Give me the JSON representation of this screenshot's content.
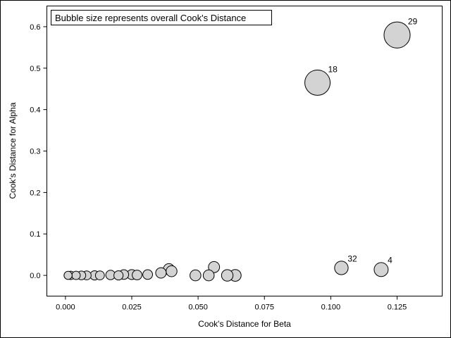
{
  "chart_data": {
    "type": "scatter",
    "subtype": "bubble",
    "inset_text": "Bubble size represents overall Cook's Distance",
    "xlabel": "Cook's Distance for Beta",
    "ylabel": "Cook's Distance for Alpha",
    "xlim": [
      -0.007,
      0.142
    ],
    "ylim": [
      -0.05,
      0.65
    ],
    "x_ticks": [
      0.0,
      0.025,
      0.05,
      0.075,
      0.1,
      0.125
    ],
    "x_tick_labels": [
      "0.000",
      "0.025",
      "0.050",
      "0.075",
      "0.100",
      "0.125"
    ],
    "y_ticks": [
      0.0,
      0.1,
      0.2,
      0.3,
      0.4,
      0.5,
      0.6
    ],
    "y_tick_labels": [
      "0.0",
      "0.1",
      "0.2",
      "0.3",
      "0.4",
      "0.5",
      "0.6"
    ],
    "grid": false,
    "bubble_fill": "#d3d3d3",
    "bubble_stroke": "#000000",
    "points": [
      {
        "x": 0.001,
        "y": 0.0,
        "size": 0.002,
        "label": ""
      },
      {
        "x": 0.002,
        "y": 0.0,
        "size": 0.003,
        "label": ""
      },
      {
        "x": 0.004,
        "y": 0.0,
        "size": 0.003,
        "label": ""
      },
      {
        "x": 0.006,
        "y": 0.0,
        "size": 0.005,
        "label": ""
      },
      {
        "x": 0.008,
        "y": 0.0,
        "size": 0.006,
        "label": ""
      },
      {
        "x": 0.011,
        "y": 0.0,
        "size": 0.008,
        "label": ""
      },
      {
        "x": 0.013,
        "y": 0.0,
        "size": 0.006,
        "label": ""
      },
      {
        "x": 0.017,
        "y": 0.001,
        "size": 0.01,
        "label": ""
      },
      {
        "x": 0.02,
        "y": 0.0,
        "size": 0.008,
        "label": ""
      },
      {
        "x": 0.022,
        "y": 0.002,
        "size": 0.012,
        "label": ""
      },
      {
        "x": 0.025,
        "y": 0.002,
        "size": 0.014,
        "label": ""
      },
      {
        "x": 0.027,
        "y": 0.001,
        "size": 0.012,
        "label": ""
      },
      {
        "x": 0.031,
        "y": 0.002,
        "size": 0.012,
        "label": ""
      },
      {
        "x": 0.036,
        "y": 0.006,
        "size": 0.02,
        "label": ""
      },
      {
        "x": 0.039,
        "y": 0.015,
        "size": 0.027,
        "label": ""
      },
      {
        "x": 0.04,
        "y": 0.01,
        "size": 0.025,
        "label": ""
      },
      {
        "x": 0.049,
        "y": 0.0,
        "size": 0.025,
        "label": ""
      },
      {
        "x": 0.054,
        "y": 0.0,
        "size": 0.025,
        "label": ""
      },
      {
        "x": 0.056,
        "y": 0.02,
        "size": 0.028,
        "label": ""
      },
      {
        "x": 0.061,
        "y": 0.0,
        "size": 0.033,
        "label": ""
      },
      {
        "x": 0.064,
        "y": 0.0,
        "size": 0.037,
        "label": ""
      },
      {
        "x": 0.095,
        "y": 0.465,
        "size": 0.55,
        "label": "18"
      },
      {
        "x": 0.104,
        "y": 0.018,
        "size": 0.07,
        "label": "32"
      },
      {
        "x": 0.119,
        "y": 0.014,
        "size": 0.08,
        "label": "4"
      },
      {
        "x": 0.125,
        "y": 0.58,
        "size": 0.6,
        "label": "29"
      }
    ]
  }
}
